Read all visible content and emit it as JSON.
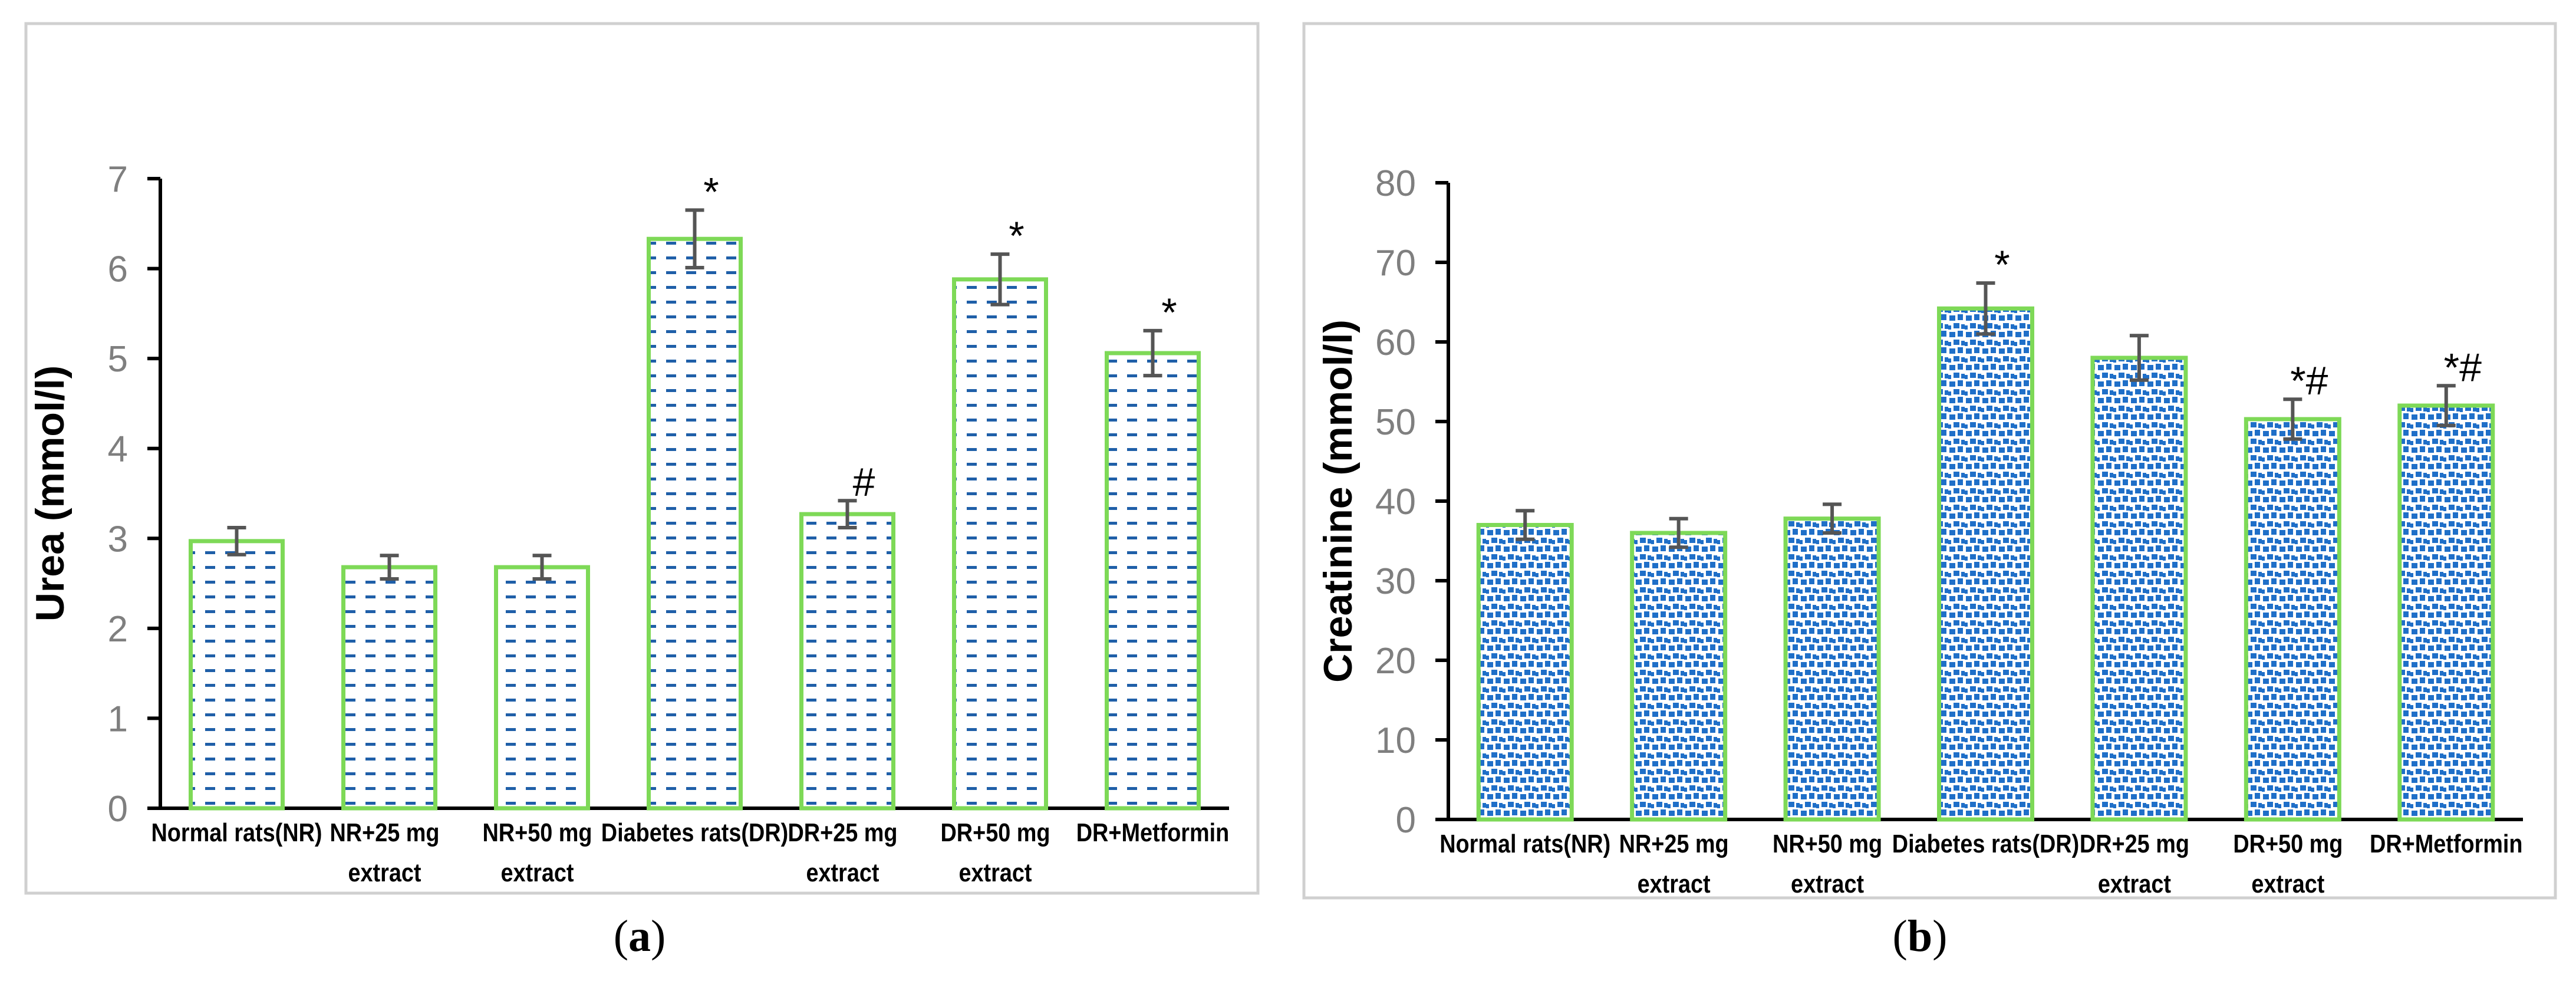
{
  "chart_data": [
    {
      "type": "bar",
      "panel_label": "a",
      "title": "",
      "xlabel": "",
      "ylabel": "Urea (mmol/l)",
      "ylim": [
        0,
        7
      ],
      "yticks": [
        0,
        1,
        2,
        3,
        4,
        5,
        6,
        7
      ],
      "categories": [
        [
          "Normal rats(NR)"
        ],
        [
          "NR+25 mg",
          "extract"
        ],
        [
          "NR+50 mg",
          "extract"
        ],
        [
          "Diabetes rats(DR)"
        ],
        [
          "DR+25 mg",
          "extract"
        ],
        [
          "DR+50 mg",
          "extract"
        ],
        [
          "DR+Metformin"
        ]
      ],
      "values": [
        2.97,
        2.68,
        2.68,
        6.33,
        3.27,
        5.88,
        5.06
      ],
      "errors": [
        0.15,
        0.13,
        0.13,
        0.32,
        0.15,
        0.28,
        0.25
      ],
      "annotations": [
        "",
        "",
        "",
        "*",
        "#",
        "*",
        "*"
      ],
      "pattern": "dash",
      "colors": {
        "fill_pattern": "#1f5fa8",
        "bar_edge": "#7ed957",
        "error_bar": "#555555",
        "tick_label": "#7f7f7f"
      }
    },
    {
      "type": "bar",
      "panel_label": "b",
      "title": "",
      "xlabel": "",
      "ylabel": "Creatinine (mmol/l)",
      "ylim": [
        0,
        80
      ],
      "yticks": [
        0,
        10,
        20,
        30,
        40,
        50,
        60,
        70,
        80
      ],
      "categories": [
        [
          "Normal rats(NR)"
        ],
        [
          "NR+25 mg",
          "extract"
        ],
        [
          "NR+50 mg",
          "extract"
        ],
        [
          "Diabetes rats(DR)"
        ],
        [
          "DR+25 mg",
          "extract"
        ],
        [
          "DR+50 mg",
          "extract"
        ],
        [
          "DR+Metformin"
        ]
      ],
      "values": [
        37.0,
        36.0,
        37.8,
        64.2,
        58.0,
        50.3,
        52.0
      ],
      "errors": [
        1.8,
        1.8,
        1.8,
        3.2,
        2.8,
        2.5,
        2.5
      ],
      "annotations": [
        "",
        "",
        "",
        "*",
        "",
        "*#",
        "*#"
      ],
      "pattern": "dots",
      "colors": {
        "fill_pattern": "#1f6fc8",
        "bar_edge": "#7ed957",
        "error_bar": "#555555",
        "tick_label": "#7f7f7f"
      }
    }
  ]
}
